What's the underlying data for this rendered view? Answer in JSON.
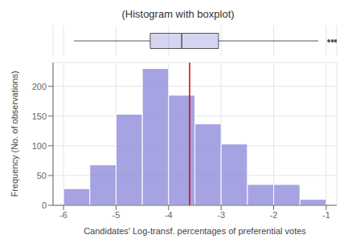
{
  "chart_data": {
    "type": "histogram",
    "title": "(Histogram with boxplot)",
    "xlabel": "Candidates' Log-transf. percentages of preferential votes",
    "ylabel": "Frequency (No. of observations)",
    "bins": [
      -6,
      -5.5,
      -5,
      -4.5,
      -4,
      -3.5,
      -3,
      -2.5,
      -2,
      -1.5,
      -1
    ],
    "values": [
      28,
      68,
      153,
      230,
      185,
      137,
      103,
      35,
      35,
      10
    ],
    "xlim": [
      -6.2,
      -0.8
    ],
    "ylim": [
      0,
      240
    ],
    "xticks": [
      -6,
      -5,
      -4,
      -3,
      -2,
      -1
    ],
    "yticks": [
      0,
      50,
      100,
      150,
      200
    ],
    "grid": true,
    "vlines": [
      {
        "x": -3.6,
        "color": "#cc0000"
      }
    ],
    "box": {
      "min": -5.8,
      "q1": -4.35,
      "median": -3.75,
      "q3": -3.05,
      "max": -1.15,
      "outliers": [
        -0.95,
        -0.88,
        -0.82
      ]
    }
  }
}
